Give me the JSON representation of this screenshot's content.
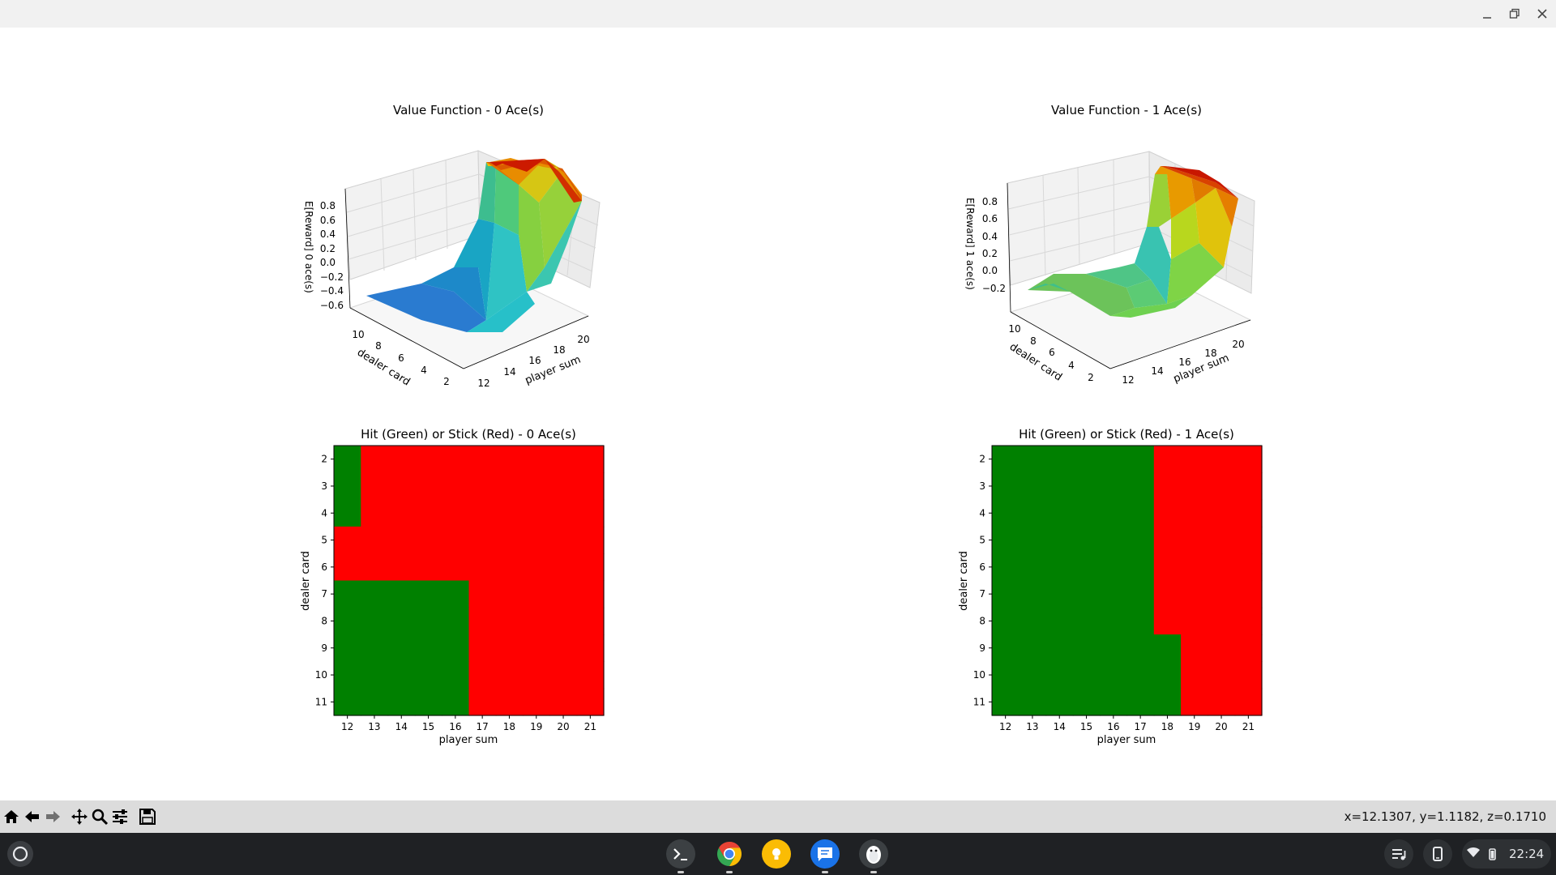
{
  "figure": {
    "surface_plots": [
      {
        "title": "Value Function - 0 Ace(s)",
        "zlabel": "E[Reward] 0 ace(s)",
        "ylabel": "dealer card",
        "xlabel": "player sum",
        "zticks": [
          "0.8",
          "0.6",
          "0.4",
          "0.2",
          "0.0",
          "−0.2",
          "−0.4",
          "−0.6"
        ],
        "dealer_ticks": [
          "10",
          "8",
          "6",
          "4",
          "2"
        ],
        "player_ticks": [
          "12",
          "14",
          "16",
          "18",
          "20"
        ]
      },
      {
        "title": "Value Function - 1 Ace(s)",
        "zlabel": "E[Reward] 1 ace(s)",
        "ylabel": "dealer card",
        "xlabel": "player sum",
        "zticks": [
          "0.8",
          "0.6",
          "0.4",
          "0.2",
          "0.0",
          "−0.2"
        ],
        "dealer_ticks": [
          "10",
          "8",
          "6",
          "4",
          "2"
        ],
        "player_ticks": [
          "12",
          "14",
          "16",
          "18",
          "20"
        ]
      }
    ],
    "policy_plots": [
      {
        "title": "Hit (Green) or Stick (Red) - 0 Ace(s)",
        "xlabel": "player sum",
        "ylabel": "dealer card",
        "xticks": [
          "12",
          "13",
          "14",
          "15",
          "16",
          "17",
          "18",
          "19",
          "20",
          "21"
        ],
        "yticks": [
          "2",
          "3",
          "4",
          "5",
          "6",
          "7",
          "8",
          "9",
          "10",
          "11"
        ]
      },
      {
        "title": "Hit (Green) or Stick (Red) - 1 Ace(s)",
        "xlabel": "player sum",
        "ylabel": "dealer card",
        "xticks": [
          "12",
          "13",
          "14",
          "15",
          "16",
          "17",
          "18",
          "19",
          "20",
          "21"
        ],
        "yticks": [
          "2",
          "3",
          "4",
          "5",
          "6",
          "7",
          "8",
          "9",
          "10",
          "11"
        ]
      }
    ],
    "colors": {
      "hit": "#008000",
      "stick": "#ff0000"
    }
  },
  "chart_data": [
    {
      "type": "heatmap",
      "title": "Hit (Green) or Stick (Red) - 0 Ace(s)",
      "x": [
        12,
        13,
        14,
        15,
        16,
        17,
        18,
        19,
        20,
        21
      ],
      "y": [
        2,
        3,
        4,
        5,
        6,
        7,
        8,
        9,
        10,
        11
      ],
      "xlabel": "player sum",
      "ylabel": "dealer card",
      "legend": {
        "1": "Hit (Green)",
        "0": "Stick (Red)"
      },
      "z": [
        [
          1,
          0,
          0,
          0,
          0,
          0,
          0,
          0,
          0,
          0
        ],
        [
          1,
          0,
          0,
          0,
          0,
          0,
          0,
          0,
          0,
          0
        ],
        [
          1,
          0,
          0,
          0,
          0,
          0,
          0,
          0,
          0,
          0
        ],
        [
          0,
          0,
          0,
          0,
          0,
          0,
          0,
          0,
          0,
          0
        ],
        [
          0,
          0,
          0,
          0,
          0,
          0,
          0,
          0,
          0,
          0
        ],
        [
          1,
          1,
          1,
          1,
          1,
          0,
          0,
          0,
          0,
          0
        ],
        [
          1,
          1,
          1,
          1,
          1,
          0,
          0,
          0,
          0,
          0
        ],
        [
          1,
          1,
          1,
          1,
          1,
          0,
          0,
          0,
          0,
          0
        ],
        [
          1,
          1,
          1,
          1,
          1,
          0,
          0,
          0,
          0,
          0
        ],
        [
          1,
          1,
          1,
          1,
          1,
          0,
          0,
          0,
          0,
          0
        ]
      ]
    },
    {
      "type": "heatmap",
      "title": "Hit (Green) or Stick (Red) - 1 Ace(s)",
      "x": [
        12,
        13,
        14,
        15,
        16,
        17,
        18,
        19,
        20,
        21
      ],
      "y": [
        2,
        3,
        4,
        5,
        6,
        7,
        8,
        9,
        10,
        11
      ],
      "xlabel": "player sum",
      "ylabel": "dealer card",
      "legend": {
        "1": "Hit (Green)",
        "0": "Stick (Red)"
      },
      "z": [
        [
          1,
          1,
          1,
          1,
          1,
          1,
          0,
          0,
          0,
          0
        ],
        [
          1,
          1,
          1,
          1,
          1,
          1,
          0,
          0,
          0,
          0
        ],
        [
          1,
          1,
          1,
          1,
          1,
          1,
          0,
          0,
          0,
          0
        ],
        [
          1,
          1,
          1,
          1,
          1,
          1,
          0,
          0,
          0,
          0
        ],
        [
          1,
          1,
          1,
          1,
          1,
          1,
          0,
          0,
          0,
          0
        ],
        [
          1,
          1,
          1,
          1,
          1,
          1,
          0,
          0,
          0,
          0
        ],
        [
          1,
          1,
          1,
          1,
          1,
          1,
          0,
          0,
          0,
          0
        ],
        [
          1,
          1,
          1,
          1,
          1,
          1,
          1,
          0,
          0,
          0
        ],
        [
          1,
          1,
          1,
          1,
          1,
          1,
          1,
          0,
          0,
          0
        ],
        [
          1,
          1,
          1,
          1,
          1,
          1,
          1,
          0,
          0,
          0
        ]
      ]
    }
  ],
  "toolbar": {
    "buttons": [
      "home-icon",
      "back-arrow-icon",
      "forward-arrow-icon",
      "pan-icon",
      "zoom-icon",
      "configure-subplots-icon",
      "save-icon"
    ],
    "coords": "x=12.1307, y=1.1182, z=0.1710"
  },
  "shelf": {
    "apps": [
      "terminal-icon",
      "chrome-icon",
      "keep-icon",
      "messages-icon",
      "linux-penguin-icon"
    ],
    "time": "22:24"
  }
}
